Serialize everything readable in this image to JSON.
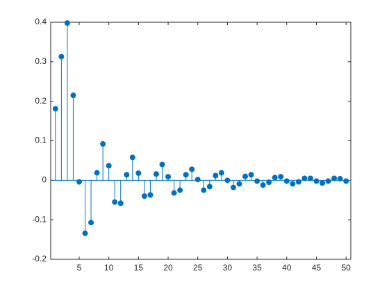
{
  "chart_data": {
    "type": "stem",
    "x": [
      1,
      2,
      3,
      4,
      5,
      6,
      7,
      8,
      9,
      10,
      11,
      12,
      13,
      14,
      15,
      16,
      17,
      18,
      19,
      20,
      21,
      22,
      23,
      24,
      25,
      26,
      27,
      28,
      29,
      30,
      31,
      32,
      33,
      34,
      35,
      36,
      37,
      38,
      39,
      40,
      41,
      42,
      43,
      44,
      45,
      46,
      47,
      48,
      49,
      50
    ],
    "values": [
      0.181,
      0.313,
      0.398,
      0.215,
      -0.004,
      -0.134,
      -0.107,
      0.019,
      0.092,
      0.037,
      -0.055,
      -0.058,
      0.014,
      0.058,
      0.018,
      -0.04,
      -0.037,
      0.016,
      0.04,
      0.009,
      -0.032,
      -0.025,
      0.014,
      0.028,
      0.002,
      -0.025,
      -0.016,
      0.012,
      0.019,
      0.0,
      -0.018,
      -0.009,
      0.01,
      0.014,
      -0.002,
      -0.012,
      -0.005,
      0.007,
      0.009,
      -0.002,
      -0.009,
      -0.004,
      0.005,
      0.005,
      -0.002,
      -0.007,
      -0.002,
      0.005,
      0.004,
      -0.002
    ],
    "color": "#0072bd",
    "xlim": [
      0.2,
      50.8
    ],
    "xticks": [
      5,
      10,
      15,
      20,
      25,
      30,
      35,
      40,
      45,
      50
    ],
    "ylim": [
      -0.2,
      0.4
    ],
    "yticks": [
      -0.2,
      -0.1,
      0,
      0.1,
      0.2,
      0.3,
      0.4
    ],
    "grid": false
  }
}
